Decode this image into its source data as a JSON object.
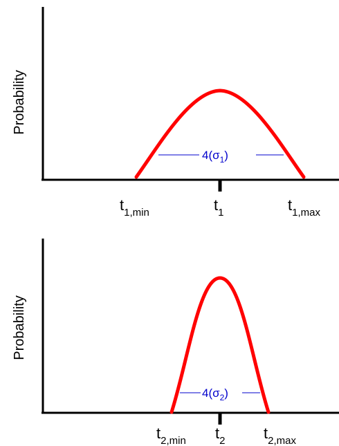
{
  "panels": [
    {
      "y_axis_label": "Probability",
      "curve_color": "#ff0000",
      "width_color": "#0000cc",
      "width_label": {
        "prefix": "4(σ",
        "sub": "1",
        "suffix": ")"
      },
      "ticks": [
        {
          "main": "t",
          "sub": "1,min"
        },
        {
          "main": "t",
          "sub": "1"
        },
        {
          "main": "t",
          "sub": "1,max"
        }
      ]
    },
    {
      "y_axis_label": "Probability",
      "curve_color": "#ff0000",
      "width_color": "#0000cc",
      "width_label": {
        "prefix": "4(σ",
        "sub": "2",
        "suffix": ")"
      },
      "ticks": [
        {
          "main": "t",
          "sub": "2,min"
        },
        {
          "main": "t",
          "sub": "2"
        },
        {
          "main": "t",
          "sub": "2,max"
        }
      ]
    }
  ]
}
